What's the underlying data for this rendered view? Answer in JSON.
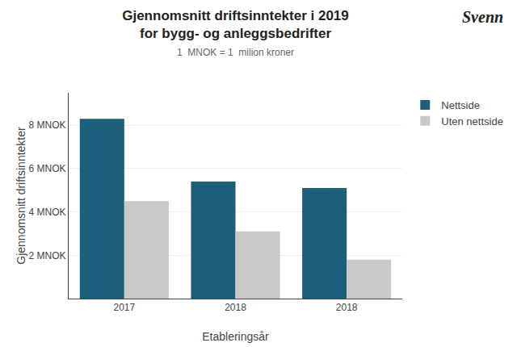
{
  "chart_data": {
    "type": "bar",
    "title": [
      "Gjennomsnitt driftsinntekter i 2019",
      "for bygg- og anleggsbedrifter"
    ],
    "subtitle": "1  MNOK = 1  milion kroner",
    "xlabel": "Etableringsår",
    "ylabel": "Gjennomsnitt driftsinntekter",
    "categories": [
      "2017",
      "2018",
      "2018"
    ],
    "series": [
      {
        "name": "Nettside",
        "color": "#1b5f7a",
        "values": [
          8.3,
          5.4,
          5.1
        ]
      },
      {
        "name": "Uten nettside",
        "color": "#c9c9c9",
        "values": [
          4.5,
          3.1,
          1.8
        ]
      }
    ],
    "ylim": [
      0,
      9.5
    ],
    "yticks": [
      {
        "value": 2,
        "label": "2 MNOK"
      },
      {
        "value": 4,
        "label": "4 MNOK"
      },
      {
        "value": 6,
        "label": "6 MNOK"
      },
      {
        "value": 8,
        "label": "8 MNOK"
      }
    ],
    "grid": true,
    "legend": "upper right",
    "annotations": [
      "Svenn"
    ]
  }
}
